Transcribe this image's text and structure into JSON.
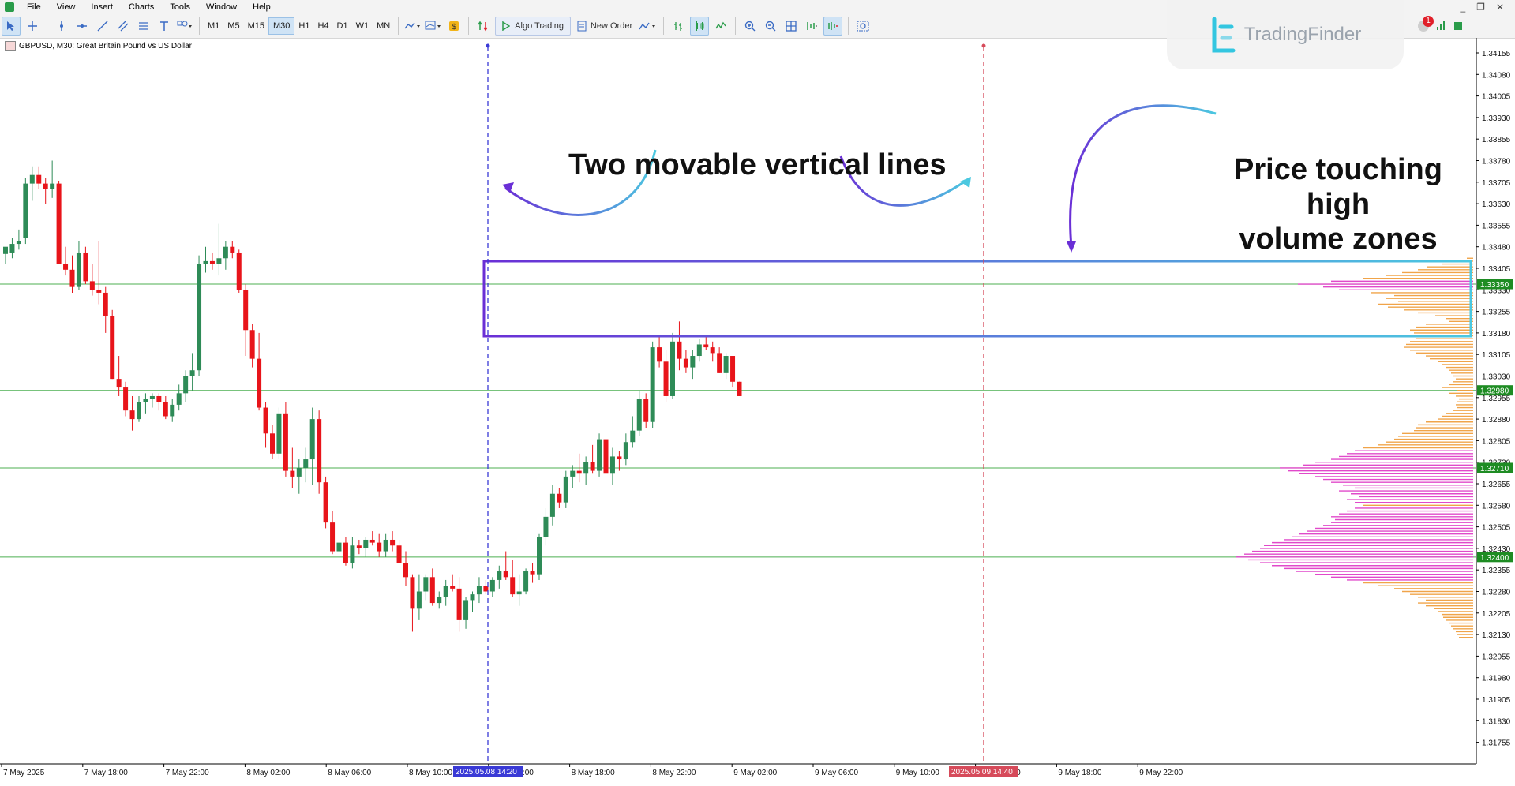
{
  "menu": {
    "items": [
      "File",
      "View",
      "Insert",
      "Charts",
      "Tools",
      "Window",
      "Help"
    ]
  },
  "toolbar": {
    "timeframes": [
      "M1",
      "M5",
      "M15",
      "M30",
      "H1",
      "H4",
      "D1",
      "W1",
      "MN"
    ],
    "active_timeframe": "M30",
    "algo_trading_label": "Algo Trading",
    "new_order_label": "New Order"
  },
  "window_controls": {
    "minimize": "_",
    "restore": "❐",
    "close": "✕"
  },
  "notifications": {
    "badge_count": "1"
  },
  "brand": {
    "name": "TradingFinder"
  },
  "chart": {
    "symbol_label": "GBPUSD, M30:  Great Britain Pound vs US Dollar",
    "annotation_lines": "Two movable vertical lines",
    "annotation_zone_line1": "Price touching high",
    "annotation_zone_line2": "volume zones",
    "price_axis": [
      "1.34155",
      "1.34080",
      "1.34005",
      "1.33930",
      "1.33855",
      "1.33780",
      "1.33705",
      "1.33630",
      "1.33555",
      "1.33480",
      "1.33405",
      "1.33330",
      "1.33255",
      "1.33180",
      "1.33105",
      "1.33030",
      "1.32955",
      "1.32880",
      "1.32805",
      "1.32730",
      "1.32655",
      "1.32580",
      "1.32505",
      "1.32430",
      "1.32355",
      "1.32280",
      "1.32205",
      "1.32130",
      "1.32055",
      "1.31980",
      "1.31905",
      "1.31830",
      "1.31755"
    ],
    "price_tags": [
      {
        "label": "1.33350",
        "price": 1.3335
      },
      {
        "label": "1.32980",
        "price": 1.3298
      },
      {
        "label": "1.32710",
        "price": 1.3271
      },
      {
        "label": "1.32400",
        "price": 1.324
      }
    ],
    "time_axis": [
      "7 May 2025",
      "7 May 18:00",
      "7 May 22:00",
      "8 May 02:00",
      "8 May 06:00",
      "8 May 10:00",
      "8 May 14:00",
      "8 May 18:00",
      "8 May 22:00",
      "9 May 02:00",
      "9 May 06:00",
      "9 May 10:00",
      "9 May 14:00",
      "9 May 18:00",
      "9 May 22:00"
    ],
    "vline_blue_label": "2025.05.08 14:20",
    "vline_red_label": "2025.05.09 14:40",
    "colors": {
      "bull": "#2e8b57",
      "bear": "#e8141a",
      "level_line": "#4caf50",
      "tag_bg": "#1e8c23",
      "zone_left": "#6a2fd6",
      "zone_right": "#4bc8e0",
      "vline_blue": "#3a3ad6",
      "vline_red": "#d64a5a",
      "profile_pink": "#e040c8",
      "profile_orange": "#f0a040"
    }
  }
}
